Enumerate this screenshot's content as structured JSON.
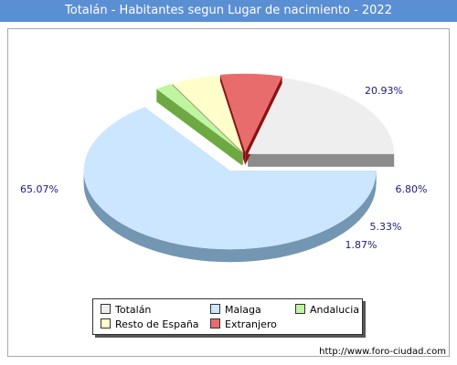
{
  "title": "Totalán - Habitantes segun Lugar de nacimiento - 2022",
  "source": "http://www.foro-ciudad.com",
  "chart_data": {
    "type": "pie",
    "title": "Totalán - Habitantes segun Lugar de nacimiento - 2022",
    "legend_position": "bottom",
    "slices": [
      {
        "name": "Totalán",
        "value": 20.93,
        "label": "20.93%",
        "color": "#eeeeee",
        "side_color": "#8c8c8c"
      },
      {
        "name": "Extranjero",
        "value": 6.8,
        "label": "6.80%",
        "color": "#e86c6c",
        "side_color": "#8c1313"
      },
      {
        "name": "Resto de España",
        "value": 5.33,
        "label": "5.33%",
        "color": "#ffffcc",
        "side_color": "#9c9c74"
      },
      {
        "name": "Andalucia",
        "value": 1.87,
        "label": "1.87%",
        "color": "#bff5a0",
        "side_color": "#6da842"
      },
      {
        "name": "Malaga",
        "value": 65.07,
        "label": "65.07%",
        "color": "#cce6ff",
        "side_color": "#7396b2"
      }
    ],
    "legend": [
      "Totalán",
      "Malaga",
      "Andalucia",
      "Resto de España",
      "Extranjero"
    ]
  }
}
